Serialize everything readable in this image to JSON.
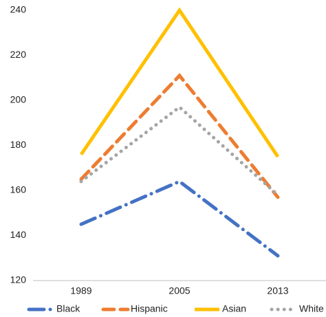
{
  "chart_data": {
    "type": "line",
    "categories": [
      "1989",
      "2005",
      "2013"
    ],
    "series": [
      {
        "name": "Black",
        "color": "#4472c4",
        "line_style": "dashdot",
        "values": [
          145,
          164,
          131
        ]
      },
      {
        "name": "Hispanic",
        "color": "#ed7d31",
        "line_style": "dashed",
        "values": [
          165,
          211,
          157
        ]
      },
      {
        "name": "Asian",
        "color": "#ffc000",
        "line_style": "solid",
        "values": [
          176,
          240,
          175
        ]
      },
      {
        "name": "White",
        "color": "#a5a5a5",
        "line_style": "dotted",
        "values": [
          164,
          197,
          158
        ]
      }
    ],
    "ylim": [
      120,
      240
    ],
    "yticks": [
      120,
      140,
      160,
      180,
      200,
      220,
      240
    ],
    "grid": false,
    "legend": "bottom"
  }
}
